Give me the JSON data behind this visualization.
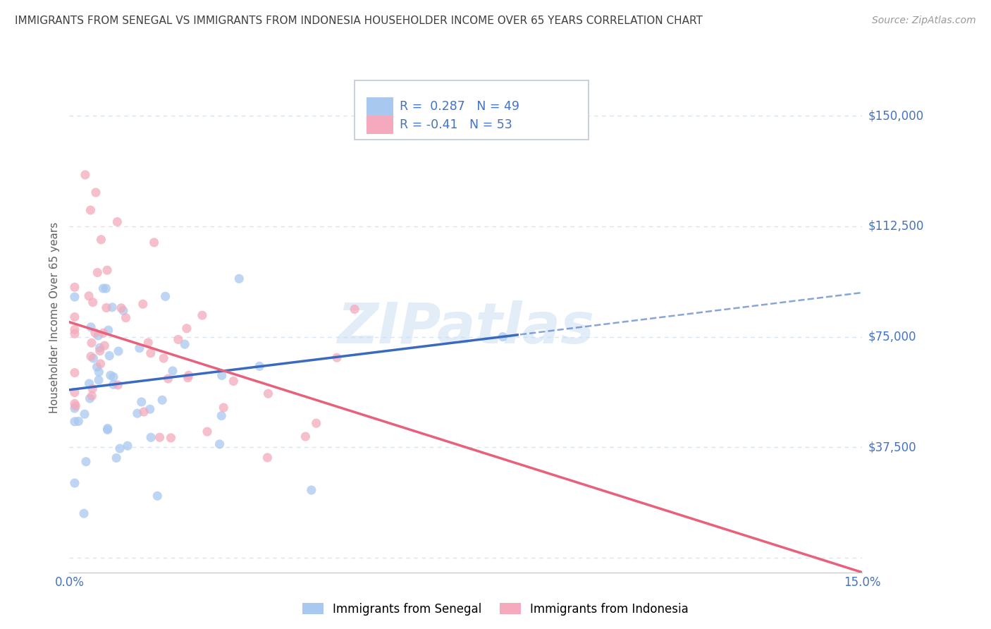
{
  "title": "IMMIGRANTS FROM SENEGAL VS IMMIGRANTS FROM INDONESIA HOUSEHOLDER INCOME OVER 65 YEARS CORRELATION CHART",
  "source": "Source: ZipAtlas.com",
  "ylabel": "Householder Income Over 65 years",
  "xlim": [
    0.0,
    0.15
  ],
  "ylim": [
    -5000,
    168000
  ],
  "yticks": [
    0,
    37500,
    75000,
    112500,
    150000
  ],
  "ytick_labels": [
    "",
    "$37,500",
    "$75,000",
    "$112,500",
    "$150,000"
  ],
  "senegal_R": 0.287,
  "senegal_N": 49,
  "indonesia_R": -0.41,
  "indonesia_N": 53,
  "senegal_color": "#a8c8f0",
  "indonesia_color": "#f4aabc",
  "senegal_line_color": "#3a6abf",
  "indonesia_line_color": "#e8607a",
  "background_color": "#ffffff",
  "grid_color": "#d8e4f0",
  "watermark": "ZIPatlas",
  "title_color": "#404040",
  "label_color": "#4472c4",
  "r_text_color": "#111111",
  "legend_border_color": "#c0c8d8"
}
